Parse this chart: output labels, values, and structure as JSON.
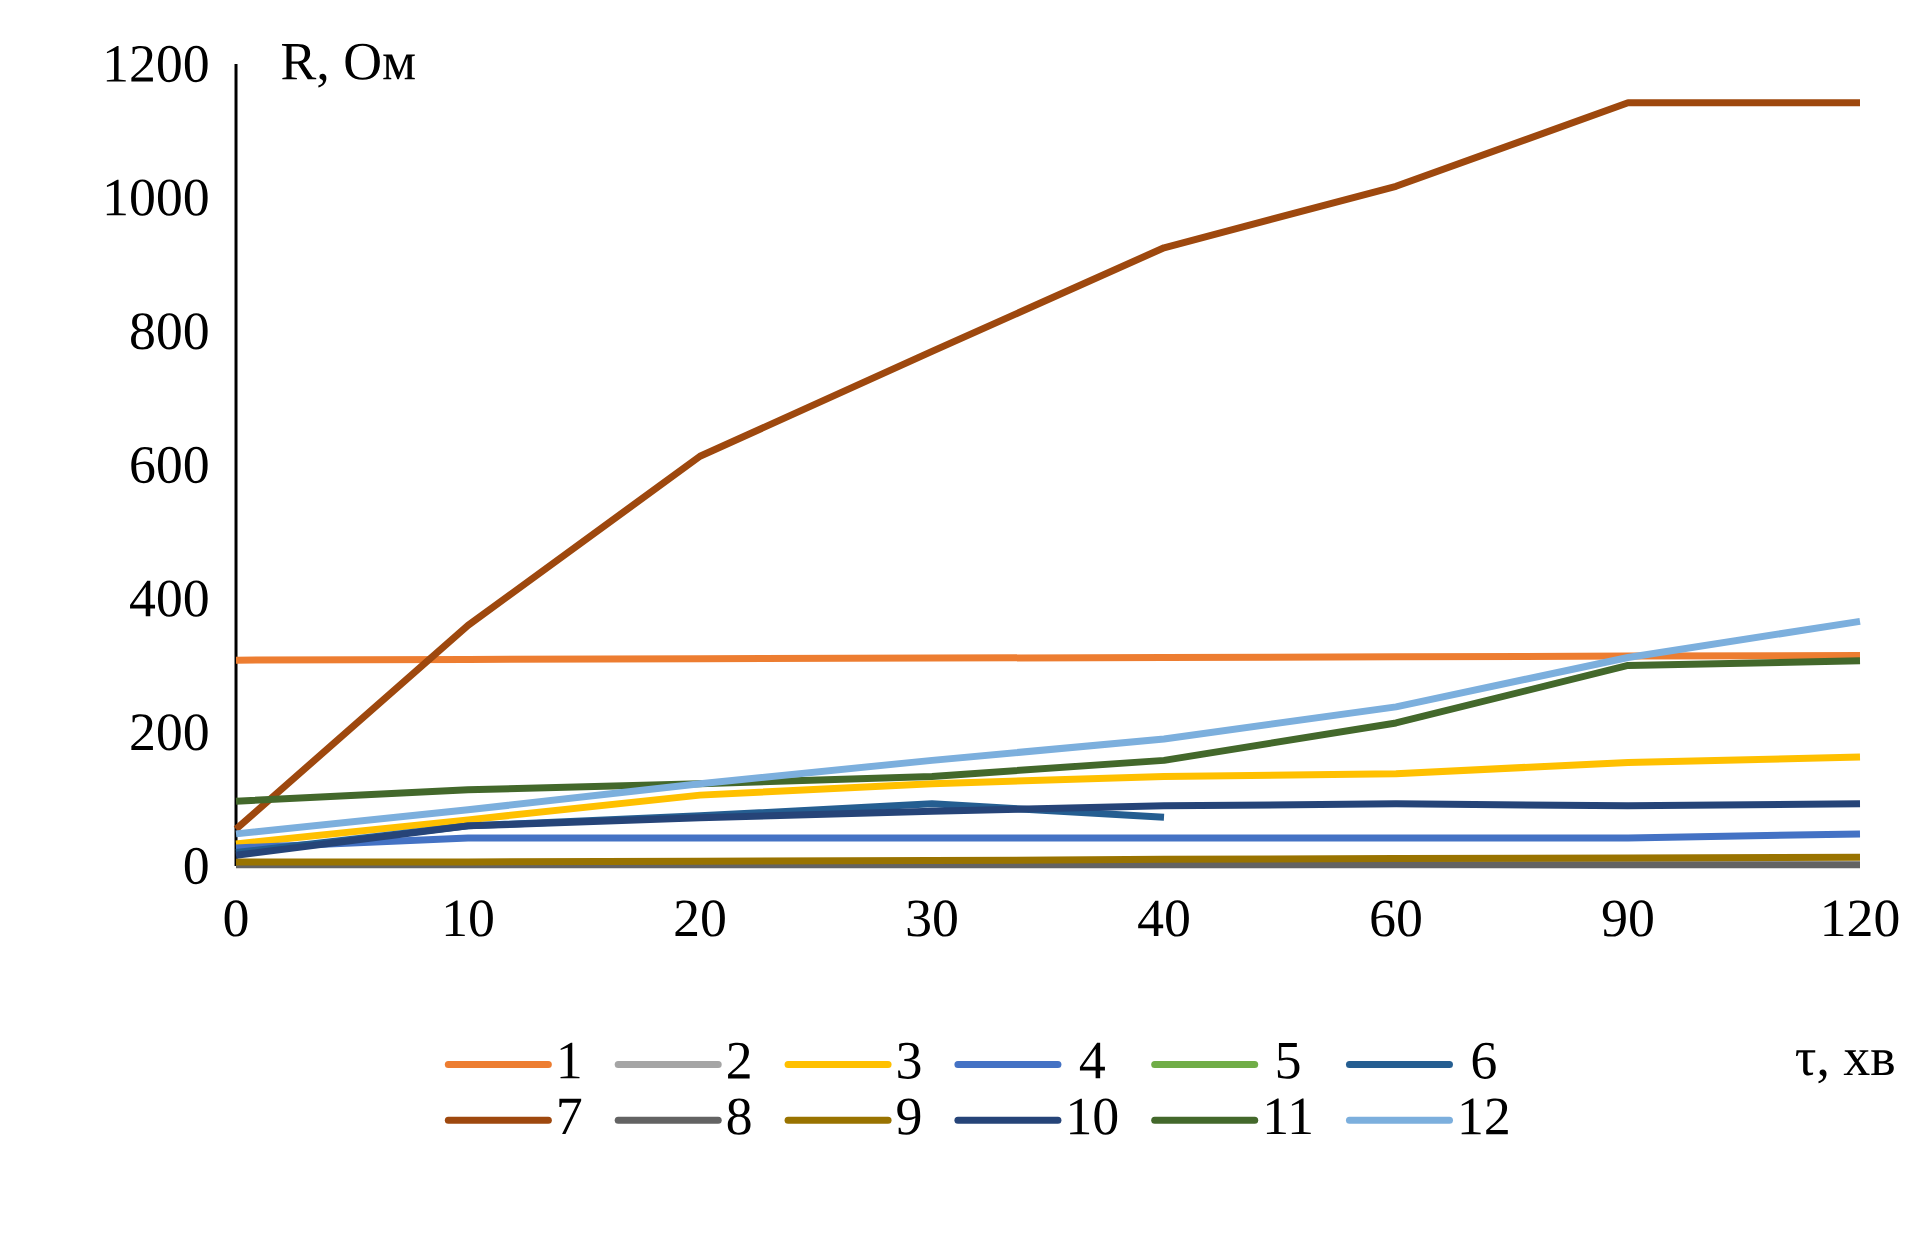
{
  "chart_data": {
    "type": "line",
    "xlabel": "τ, хв",
    "ylabel": "R, Ом",
    "categories": [
      "0",
      "10",
      "20",
      "30",
      "40",
      "60",
      "90",
      "120"
    ],
    "ylim": [
      0,
      1200
    ],
    "yticks": [
      0,
      200,
      400,
      600,
      800,
      1000,
      1200
    ],
    "legend": "bottom",
    "series": [
      {
        "name": "1",
        "color": "#ed7d31",
        "values": [
          308,
          309,
          310,
          311,
          312,
          313,
          314,
          315
        ]
      },
      {
        "name": "2",
        "color": "#a5a5a5",
        "values": [
          null,
          null,
          null,
          null,
          null,
          null,
          null,
          null
        ]
      },
      {
        "name": "3",
        "color": "#ffc000",
        "values": [
          33,
          69,
          106,
          123,
          134,
          138,
          155,
          163
        ]
      },
      {
        "name": "4",
        "color": "#4472c4",
        "values": [
          27,
          42,
          42,
          42,
          42,
          42,
          42,
          48
        ]
      },
      {
        "name": "5",
        "color": "#70ad47",
        "values": [
          null,
          null,
          null,
          null,
          null,
          null,
          null,
          null
        ]
      },
      {
        "name": "6",
        "color": "#255e91",
        "values": [
          20,
          60,
          75,
          93,
          73,
          null,
          null,
          null
        ]
      },
      {
        "name": "7",
        "color": "#9e480e",
        "values": [
          55,
          360,
          613,
          770,
          925,
          1017,
          1142,
          1142
        ]
      },
      {
        "name": "8",
        "color": "#636363",
        "values": [
          2,
          2,
          2,
          2,
          2,
          2,
          2,
          2
        ]
      },
      {
        "name": "9",
        "color": "#997300",
        "values": [
          6,
          6,
          7,
          8,
          10,
          11,
          12,
          13
        ]
      },
      {
        "name": "10",
        "color": "#264478",
        "values": [
          16,
          60,
          72,
          82,
          90,
          93,
          90,
          93
        ]
      },
      {
        "name": "11",
        "color": "#43682b",
        "values": [
          97,
          114,
          123,
          134,
          158,
          214,
          300,
          307
        ]
      },
      {
        "name": "12",
        "color": "#7cafdd",
        "values": [
          48,
          84,
          123,
          158,
          190,
          238,
          312,
          366
        ]
      }
    ]
  }
}
